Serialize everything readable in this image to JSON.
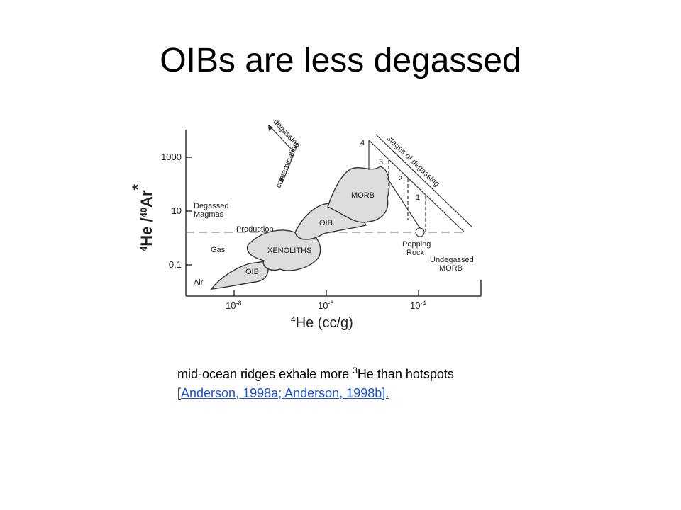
{
  "slide": {
    "title": "OIBs are less degassed",
    "figure": {
      "y_label": {
        "mass1": "4",
        "el1": "He /",
        "mass2": "40",
        "el2": "Ar",
        "mark": "*"
      },
      "y_ticks": [
        "1000",
        "10",
        "0.1"
      ],
      "x_ticks": [
        {
          "base": "10",
          "exp": "-8"
        },
        {
          "base": "10",
          "exp": "-6"
        },
        {
          "base": "10",
          "exp": "-4"
        }
      ],
      "x_label": {
        "mass": "4",
        "rest": "He (cc/g)"
      },
      "regions": [
        "MORB",
        "OIB",
        "XENOLITHS",
        "OIB"
      ],
      "notes": {
        "degassed": "Degassed",
        "magmas": "Magmas",
        "production": "Production",
        "gas": "Gas",
        "air": "Air",
        "popping": "Popping",
        "rock": "Rock",
        "undegassed": "Undegassed",
        "morb": "MORB",
        "degassing": "degassing",
        "contamination": "contamination",
        "stages": "stages of degassing"
      },
      "stage_numbers": [
        "4",
        "3",
        "2",
        "1"
      ]
    },
    "caption": {
      "text1": "mid-ocean ridges exhale more ",
      "sup": "3",
      "text2": "He than hotspots [",
      "link": "Anderson, 1998a; Anderson, 1998b]."
    }
  }
}
